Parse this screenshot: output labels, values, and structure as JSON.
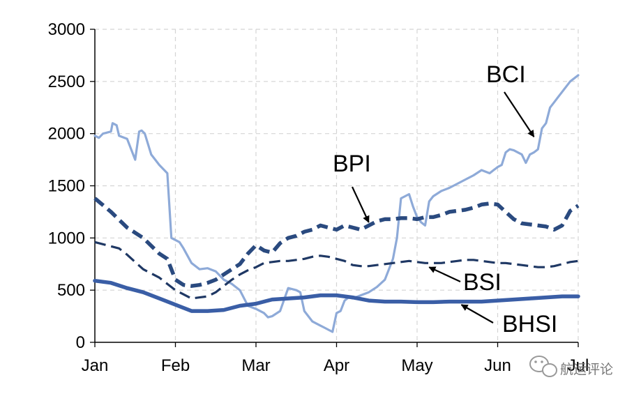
{
  "chart_data": {
    "type": "line",
    "title": "",
    "xlabel": "",
    "ylabel": "",
    "xlim": [
      0,
      6
    ],
    "ylim": [
      0,
      3000
    ],
    "yticks": [
      0,
      500,
      1000,
      1500,
      2000,
      2500,
      3000
    ],
    "x_tick_labels": [
      "Jan",
      "Feb",
      "Mar",
      "Apr",
      "May",
      "Jun",
      "Jul"
    ],
    "grid": true,
    "series": [
      {
        "name": "BCI",
        "color": "#8eaad8",
        "style": "solid",
        "x": [
          0,
          0.05,
          0.1,
          0.2,
          0.22,
          0.27,
          0.3,
          0.4,
          0.5,
          0.55,
          0.58,
          0.62,
          0.7,
          0.75,
          0.8,
          0.9,
          0.95,
          1.0,
          1.05,
          1.1,
          1.2,
          1.3,
          1.4,
          1.5,
          1.6,
          1.7,
          1.8,
          1.9,
          2.0,
          2.1,
          2.15,
          2.2,
          2.3,
          2.4,
          2.5,
          2.55,
          2.6,
          2.7,
          2.75,
          2.8,
          2.85,
          2.9,
          2.95,
          3.0,
          3.05,
          3.1,
          3.15,
          3.2,
          3.3,
          3.4,
          3.5,
          3.6,
          3.7,
          3.75,
          3.8,
          3.9,
          3.95,
          4.0,
          4.05,
          4.1,
          4.15,
          4.2,
          4.3,
          4.4,
          4.5,
          4.6,
          4.7,
          4.8,
          4.9,
          4.95,
          5.0,
          5.05,
          5.1,
          5.15,
          5.2,
          5.3,
          5.35,
          5.4,
          5.45,
          5.5,
          5.55,
          5.6,
          5.65,
          5.7,
          5.75,
          5.8,
          5.9,
          6.0
        ],
        "values": [
          1980,
          1960,
          2000,
          2020,
          2100,
          2080,
          1980,
          1950,
          1750,
          2020,
          2030,
          2000,
          1800,
          1750,
          1700,
          1620,
          1000,
          980,
          960,
          900,
          760,
          700,
          710,
          680,
          600,
          560,
          500,
          350,
          320,
          280,
          240,
          250,
          300,
          520,
          500,
          480,
          300,
          200,
          180,
          160,
          140,
          120,
          100,
          280,
          300,
          400,
          430,
          420,
          450,
          480,
          530,
          600,
          800,
          1000,
          1380,
          1420,
          1300,
          1200,
          1150,
          1120,
          1350,
          1400,
          1450,
          1480,
          1520,
          1560,
          1600,
          1650,
          1620,
          1650,
          1680,
          1700,
          1820,
          1850,
          1840,
          1800,
          1720,
          1800,
          1820,
          1850,
          2050,
          2100,
          2250,
          2300,
          2350,
          2400,
          2500,
          2560
        ]
      },
      {
        "name": "BPI",
        "color": "#2a4a7f",
        "style": "dashed",
        "x": [
          0,
          0.2,
          0.4,
          0.6,
          0.8,
          0.9,
          1.0,
          1.1,
          1.2,
          1.3,
          1.4,
          1.5,
          1.6,
          1.7,
          1.8,
          1.9,
          2.0,
          2.1,
          2.2,
          2.3,
          2.4,
          2.5,
          2.6,
          2.7,
          2.8,
          2.9,
          3.0,
          3.1,
          3.2,
          3.3,
          3.4,
          3.5,
          3.6,
          3.7,
          3.8,
          3.9,
          4.0,
          4.1,
          4.2,
          4.3,
          4.4,
          4.5,
          4.6,
          4.7,
          4.8,
          4.9,
          5.0,
          5.1,
          5.2,
          5.3,
          5.4,
          5.5,
          5.6,
          5.7,
          5.8,
          5.9,
          6.0
        ],
        "values": [
          1380,
          1250,
          1100,
          1000,
          850,
          800,
          600,
          550,
          540,
          550,
          570,
          600,
          650,
          700,
          750,
          850,
          930,
          880,
          860,
          950,
          1000,
          1020,
          1060,
          1080,
          1120,
          1100,
          1080,
          1120,
          1100,
          1080,
          1120,
          1160,
          1180,
          1180,
          1190,
          1190,
          1180,
          1200,
          1200,
          1220,
          1250,
          1260,
          1270,
          1290,
          1320,
          1330,
          1320,
          1250,
          1180,
          1140,
          1130,
          1120,
          1110,
          1080,
          1120,
          1260,
          1310
        ]
      },
      {
        "name": "BSI",
        "color": "#1f3864",
        "style": "dashed",
        "x": [
          0,
          0.1,
          0.2,
          0.3,
          0.4,
          0.5,
          0.6,
          0.7,
          0.8,
          0.9,
          1.0,
          1.1,
          1.2,
          1.3,
          1.4,
          1.5,
          1.6,
          1.7,
          1.8,
          1.9,
          2.0,
          2.1,
          2.2,
          2.3,
          2.4,
          2.5,
          2.6,
          2.7,
          2.8,
          2.9,
          3.0,
          3.1,
          3.2,
          3.3,
          3.4,
          3.5,
          3.6,
          3.7,
          3.8,
          3.9,
          4.0,
          4.1,
          4.2,
          4.3,
          4.4,
          4.5,
          4.6,
          4.7,
          4.8,
          4.9,
          5.0,
          5.1,
          5.2,
          5.3,
          5.4,
          5.5,
          5.6,
          5.7,
          5.8,
          5.9,
          6.0
        ],
        "values": [
          960,
          940,
          920,
          900,
          840,
          770,
          700,
          660,
          620,
          560,
          500,
          460,
          420,
          430,
          440,
          480,
          540,
          600,
          650,
          690,
          720,
          760,
          770,
          780,
          780,
          790,
          800,
          820,
          830,
          820,
          800,
          780,
          740,
          730,
          730,
          740,
          750,
          760,
          770,
          780,
          770,
          760,
          760,
          760,
          770,
          780,
          790,
          790,
          780,
          770,
          760,
          760,
          750,
          740,
          730,
          720,
          720,
          730,
          750,
          770,
          780
        ]
      },
      {
        "name": "BHSI",
        "color": "#3a5ea6",
        "style": "solid",
        "x": [
          0,
          0.2,
          0.4,
          0.6,
          0.8,
          1.0,
          1.2,
          1.4,
          1.6,
          1.8,
          2.0,
          2.2,
          2.4,
          2.6,
          2.8,
          3.0,
          3.2,
          3.4,
          3.6,
          3.8,
          4.0,
          4.2,
          4.4,
          4.6,
          4.8,
          5.0,
          5.2,
          5.4,
          5.6,
          5.8,
          6.0
        ],
        "values": [
          590,
          570,
          520,
          480,
          420,
          360,
          300,
          300,
          310,
          350,
          370,
          410,
          420,
          430,
          450,
          450,
          430,
          400,
          390,
          390,
          385,
          385,
          390,
          390,
          390,
          400,
          410,
          420,
          430,
          440,
          440
        ]
      }
    ],
    "annotations": [
      {
        "label": "BCI",
        "target_x": 5.45,
        "target_y": 1970
      },
      {
        "label": "BPI",
        "target_x": 3.4,
        "target_y": 1150
      },
      {
        "label": "BSI",
        "target_x": 4.15,
        "target_y": 720
      },
      {
        "label": "BHSI",
        "target_x": 4.55,
        "target_y": 360
      }
    ]
  },
  "watermark": {
    "text": "航运评论",
    "icon": "wechat-icon"
  }
}
